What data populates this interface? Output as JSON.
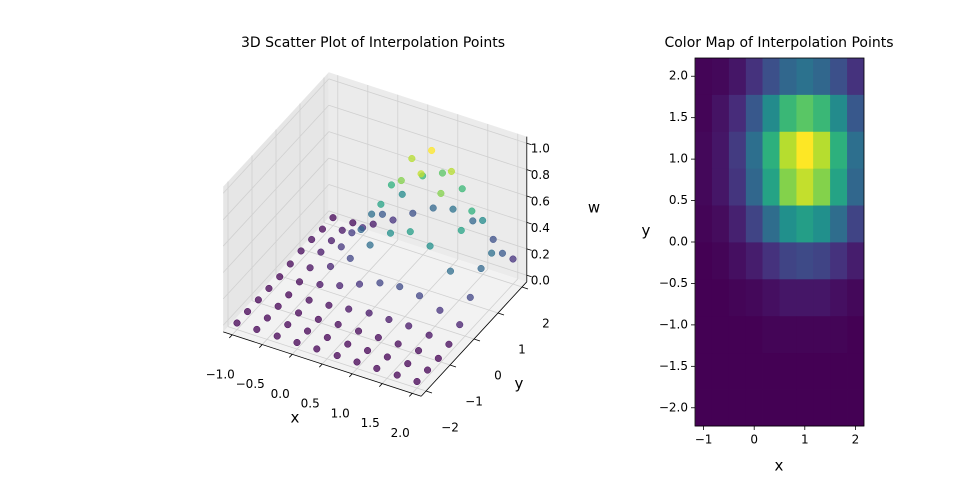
{
  "chart_data": [
    {
      "type": "scatter3d",
      "title": "3D Scatter Plot of Interpolation Points",
      "xlabel": "x",
      "ylabel": "y",
      "zlabel": "w",
      "cmap": "viridis",
      "grid": true,
      "x": [
        -1,
        -0.67,
        -0.33,
        0,
        0.33,
        0.67,
        1,
        1.33,
        1.67,
        2
      ],
      "y": [
        -2,
        -1.56,
        -1.11,
        -0.67,
        -0.22,
        0.22,
        0.67,
        1.11,
        1.56,
        2
      ],
      "w": [
        [
          0,
          0,
          0,
          0,
          0,
          0,
          0,
          0,
          0,
          0
        ],
        [
          0,
          0,
          0,
          0,
          0,
          0,
          0,
          0,
          0,
          0
        ],
        [
          0,
          0,
          0,
          0,
          0.01,
          0.01,
          0.01,
          0.01,
          0.01,
          0
        ],
        [
          0,
          0,
          0.01,
          0.02,
          0.04,
          0.06,
          0.06,
          0.06,
          0.04,
          0.02
        ],
        [
          0,
          0.01,
          0.04,
          0.08,
          0.14,
          0.2,
          0.22,
          0.2,
          0.14,
          0.08
        ],
        [
          0.01,
          0.03,
          0.09,
          0.2,
          0.35,
          0.49,
          0.55,
          0.49,
          0.35,
          0.2
        ],
        [
          0.02,
          0.06,
          0.15,
          0.33,
          0.57,
          0.8,
          0.9,
          0.8,
          0.57,
          0.33
        ],
        [
          0.02,
          0.06,
          0.17,
          0.36,
          0.63,
          0.88,
          0.99,
          0.88,
          0.63,
          0.36
        ],
        [
          0.01,
          0.05,
          0.12,
          0.27,
          0.47,
          0.66,
          0.73,
          0.66,
          0.47,
          0.27
        ],
        [
          0.01,
          0.02,
          0.06,
          0.14,
          0.24,
          0.33,
          0.37,
          0.33,
          0.24,
          0.14
        ]
      ],
      "xlim": [
        -1.15,
        2.15
      ],
      "ylim": [
        -2.2,
        2.2
      ],
      "zlim": [
        -0.05,
        1.05
      ],
      "xticks": [
        {
          "value": -1,
          "label": "−1.0"
        },
        {
          "value": -0.5,
          "label": "−0.5"
        },
        {
          "value": 0,
          "label": "0.0"
        },
        0.5,
        {
          "value": 1,
          "label": "1.0"
        },
        1.5,
        {
          "value": 2,
          "label": "2.0"
        }
      ],
      "yticks": [
        {
          "value": -2,
          "label": "−2"
        },
        {
          "value": -1,
          "label": "−1"
        },
        0,
        1,
        2
      ],
      "zticks": [
        {
          "value": 0,
          "label": "0.0"
        },
        0.2,
        0.4,
        0.6,
        0.8,
        {
          "value": 1,
          "label": "1.0"
        }
      ]
    },
    {
      "type": "heatmap",
      "title": "Color Map of Interpolation Points",
      "xlabel": "x",
      "ylabel": "y",
      "cmap": "viridis",
      "x": [
        -1,
        -0.67,
        -0.33,
        0,
        0.33,
        0.67,
        1,
        1.33,
        1.67,
        2
      ],
      "y": [
        -2,
        -1.56,
        -1.11,
        -0.67,
        -0.22,
        0.22,
        0.67,
        1.11,
        1.56,
        2
      ],
      "z": [
        [
          0,
          0,
          0,
          0,
          0,
          0,
          0,
          0,
          0,
          0
        ],
        [
          0,
          0,
          0,
          0,
          0,
          0,
          0,
          0,
          0,
          0
        ],
        [
          0,
          0,
          0,
          0,
          0.01,
          0.01,
          0.01,
          0.01,
          0.01,
          0
        ],
        [
          0,
          0,
          0.01,
          0.02,
          0.04,
          0.06,
          0.06,
          0.06,
          0.04,
          0.02
        ],
        [
          0,
          0.01,
          0.04,
          0.08,
          0.14,
          0.2,
          0.22,
          0.2,
          0.14,
          0.08
        ],
        [
          0.01,
          0.03,
          0.09,
          0.2,
          0.35,
          0.49,
          0.55,
          0.49,
          0.35,
          0.2
        ],
        [
          0.02,
          0.06,
          0.15,
          0.33,
          0.57,
          0.8,
          0.9,
          0.8,
          0.57,
          0.33
        ],
        [
          0.02,
          0.06,
          0.17,
          0.36,
          0.63,
          0.88,
          0.99,
          0.88,
          0.63,
          0.36
        ],
        [
          0.01,
          0.05,
          0.12,
          0.27,
          0.47,
          0.66,
          0.73,
          0.66,
          0.47,
          0.27
        ],
        [
          0.01,
          0.02,
          0.06,
          0.14,
          0.24,
          0.33,
          0.37,
          0.33,
          0.24,
          0.14
        ]
      ],
      "xlim": [
        -1.17,
        2.17
      ],
      "ylim": [
        -2.22,
        2.22
      ],
      "xticks": [
        {
          "value": -1,
          "label": "−1"
        },
        0,
        1,
        2
      ],
      "yticks": [
        {
          "value": -2,
          "label": "−2.0"
        },
        {
          "value": -1.5,
          "label": "−1.5"
        },
        {
          "value": -1,
          "label": "−1.0"
        },
        {
          "value": -0.5,
          "label": "−0.5"
        },
        {
          "value": 0,
          "label": "0.0"
        },
        0.5,
        {
          "value": 1,
          "label": "1.0"
        },
        1.5,
        {
          "value": 2,
          "label": "2.0"
        }
      ]
    }
  ]
}
